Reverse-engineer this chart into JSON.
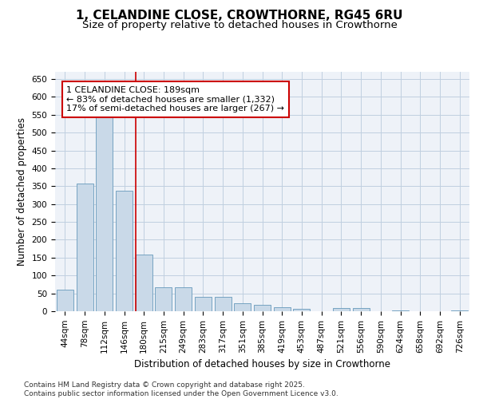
{
  "title": "1, CELANDINE CLOSE, CROWTHORNE, RG45 6RU",
  "subtitle": "Size of property relative to detached houses in Crowthorne",
  "xlabel": "Distribution of detached houses by size in Crowthorne",
  "ylabel": "Number of detached properties",
  "bar_values": [
    60,
    357,
    545,
    338,
    158,
    68,
    68,
    40,
    40,
    22,
    18,
    12,
    7,
    0,
    8,
    8,
    0,
    3,
    0,
    0,
    3
  ],
  "bar_labels": [
    "44sqm",
    "78sqm",
    "112sqm",
    "146sqm",
    "180sqm",
    "215sqm",
    "249sqm",
    "283sqm",
    "317sqm",
    "351sqm",
    "385sqm",
    "419sqm",
    "453sqm",
    "487sqm",
    "521sqm",
    "556sqm",
    "590sqm",
    "624sqm",
    "658sqm",
    "692sqm",
    "726sqm"
  ],
  "bar_color": "#c9d9e8",
  "bar_edge_color": "#6699bb",
  "grid_color": "#c0cfe0",
  "background_color": "#eef2f8",
  "vline_color": "#cc0000",
  "vline_pos": 3.6,
  "annotation_text": "1 CELANDINE CLOSE: 189sqm\n← 83% of detached houses are smaller (1,332)\n17% of semi-detached houses are larger (267) →",
  "ylim": [
    0,
    670
  ],
  "yticks": [
    0,
    50,
    100,
    150,
    200,
    250,
    300,
    350,
    400,
    450,
    500,
    550,
    600,
    650
  ],
  "footer_text": "Contains HM Land Registry data © Crown copyright and database right 2025.\nContains public sector information licensed under the Open Government Licence v3.0.",
  "title_fontsize": 11,
  "subtitle_fontsize": 9.5,
  "axis_label_fontsize": 8.5,
  "tick_fontsize": 7.5,
  "annot_fontsize": 8,
  "footer_fontsize": 6.5
}
